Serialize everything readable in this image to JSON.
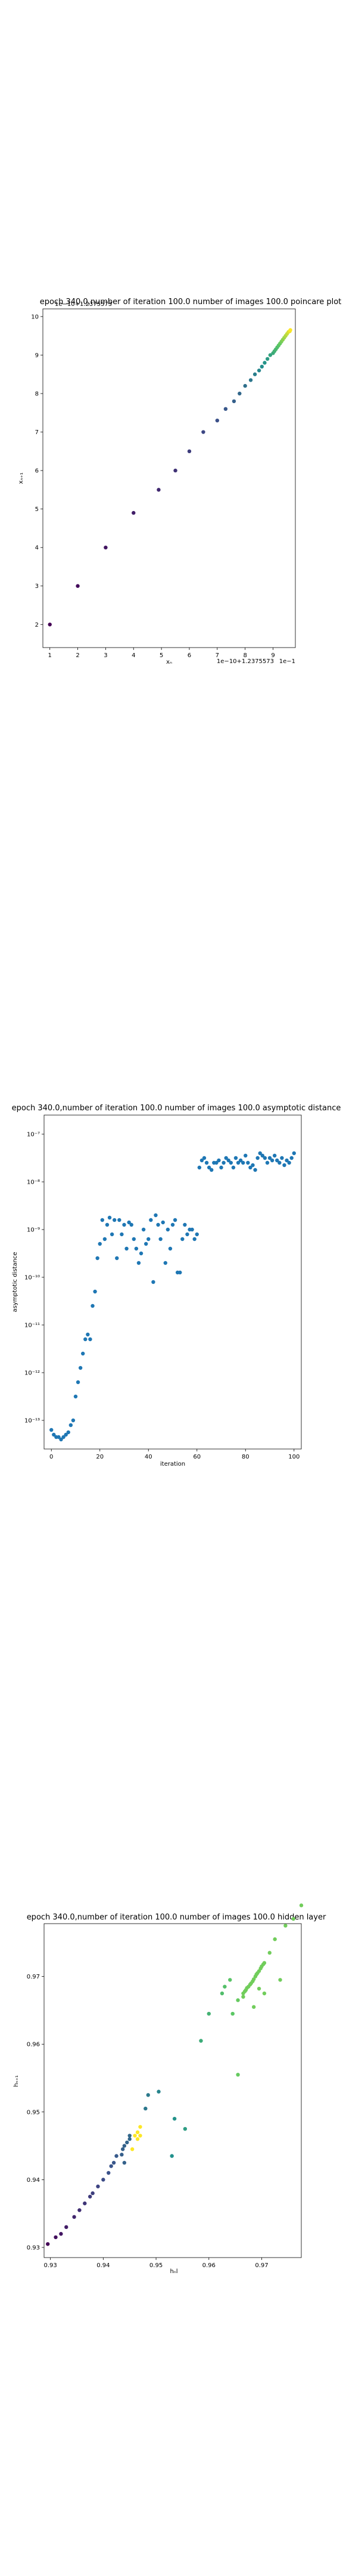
{
  "chart_data": [
    {
      "type": "scatter",
      "title": "epoch 340.0,number of iteration 100.0 number of images 100.0 poincare plot",
      "xlabel": "xₙ",
      "ylabel": "xₙ₊₁",
      "x_offset_text": "1e−10+1.2375573",
      "y_offset_text": "1e−10+1.2375573",
      "x_corner_text": "1e−1",
      "xlim": [
        0.75,
        9.8
      ],
      "ylim": [
        1.4,
        10.2
      ],
      "xticks": [
        "1",
        "2",
        "3",
        "4",
        "5",
        "6",
        "7",
        "8",
        "9"
      ],
      "yticks": [
        "2",
        "3",
        "4",
        "5",
        "6",
        "7",
        "8",
        "9",
        "10"
      ],
      "colormap": "viridis",
      "x": [
        1.0,
        2.0,
        3.0,
        4.0,
        4.9,
        5.5,
        6.0,
        6.5,
        7.0,
        7.3,
        7.6,
        7.8,
        8.0,
        8.2,
        8.35,
        8.5,
        8.6,
        8.7,
        8.8,
        8.9,
        9.0,
        9.05,
        9.1,
        9.15,
        9.2,
        9.25,
        9.3,
        9.35,
        9.4,
        9.45,
        9.5,
        9.55,
        9.6,
        9.62
      ],
      "y": [
        2.0,
        3.0,
        4.0,
        4.9,
        5.5,
        6.0,
        6.5,
        7.0,
        7.3,
        7.6,
        7.8,
        8.0,
        8.2,
        8.35,
        8.5,
        8.6,
        8.7,
        8.8,
        8.9,
        9.0,
        9.05,
        9.1,
        9.15,
        9.2,
        9.25,
        9.3,
        9.35,
        9.4,
        9.45,
        9.5,
        9.55,
        9.6,
        9.62,
        9.65
      ]
    },
    {
      "type": "scatter",
      "title": "epoch 340.0,number of iteration 100.0  number of images 100.0 asymptotic distance",
      "xlabel": "iteration",
      "ylabel": "asymptotic distance",
      "yscale": "log",
      "xlim": [
        -3,
        103
      ],
      "ylim": [
        -13.6,
        -6.6
      ],
      "xticks": [
        "0",
        "20",
        "40",
        "60",
        "80",
        "100"
      ],
      "yticks": [
        "10⁻¹³",
        "10⁻¹²",
        "10⁻¹¹",
        "10⁻¹⁰",
        "10⁻⁹",
        "10⁻⁸",
        "10⁻⁷"
      ],
      "color": "#1f77b4",
      "x": [
        0,
        1,
        2,
        3,
        4,
        5,
        6,
        7,
        8,
        9,
        10,
        11,
        12,
        13,
        14,
        15,
        16,
        17,
        18,
        19,
        20,
        21,
        22,
        23,
        24,
        25,
        26,
        27,
        28,
        29,
        30,
        31,
        32,
        33,
        34,
        35,
        36,
        37,
        38,
        39,
        40,
        41,
        42,
        43,
        44,
        45,
        46,
        47,
        48,
        49,
        50,
        51,
        52,
        53,
        54,
        55,
        56,
        57,
        58,
        59,
        60,
        61,
        62,
        63,
        64,
        65,
        66,
        67,
        68,
        69,
        70,
        71,
        72,
        73,
        74,
        75,
        76,
        77,
        78,
        79,
        80,
        81,
        82,
        83,
        84,
        85,
        86,
        87,
        88,
        89,
        90,
        91,
        92,
        93,
        94,
        95,
        96,
        97,
        98,
        99,
        100
      ],
      "y": [
        -13.2,
        -13.3,
        -13.35,
        -13.35,
        -13.4,
        -13.35,
        -13.3,
        -13.25,
        -13.1,
        -13.0,
        -12.5,
        -12.2,
        -11.9,
        -11.6,
        -11.3,
        -11.2,
        -11.3,
        -10.6,
        -10.3,
        -9.6,
        -9.3,
        -8.8,
        -9.2,
        -8.9,
        -8.75,
        -9.1,
        -8.8,
        -9.6,
        -8.8,
        -9.1,
        -8.9,
        -9.4,
        -8.85,
        -8.9,
        -9.2,
        -9.4,
        -9.7,
        -9.5,
        -9.0,
        -9.3,
        -9.2,
        -8.8,
        -10.1,
        -8.7,
        -8.9,
        -9.2,
        -8.85,
        -9.7,
        -9.0,
        -9.4,
        -8.9,
        -8.8,
        -9.9,
        -9.9,
        -9.2,
        -8.9,
        -9.1,
        -9.0,
        -9.0,
        -9.2,
        -9.1,
        -7.7,
        -7.55,
        -7.5,
        -7.6,
        -7.7,
        -7.75,
        -7.6,
        -7.6,
        -7.55,
        -7.7,
        -7.6,
        -7.5,
        -7.55,
        -7.6,
        -7.7,
        -7.5,
        -7.6,
        -7.55,
        -7.6,
        -7.45,
        -7.6,
        -7.7,
        -7.65,
        -7.75,
        -7.5,
        -7.4,
        -7.45,
        -7.5,
        -7.6,
        -7.5,
        -7.55,
        -7.45,
        -7.55,
        -7.6,
        -7.5,
        -7.65,
        -7.55,
        -7.6,
        -7.5,
        -7.4
      ]
    },
    {
      "type": "scatter",
      "title": "epoch 340.0,number of iteration 100.0  number of images 100.0 hidden layer",
      "xlabel": "hₙl",
      "ylabel": "hₙ₊₁",
      "xlim": [
        0.9288,
        0.9775
      ],
      "ylim": [
        0.9285,
        0.9778
      ],
      "xticks": [
        "0.93",
        "0.94",
        "0.95",
        "0.96",
        "0.97"
      ],
      "yticks": [
        "0.93",
        "0.94",
        "0.95",
        "0.96",
        "0.97"
      ],
      "colormap": "viridis",
      "x": [
        0.9295,
        0.931,
        0.932,
        0.933,
        0.9345,
        0.9355,
        0.9365,
        0.9375,
        0.938,
        0.939,
        0.94,
        0.941,
        0.9415,
        0.942,
        0.9425,
        0.9435,
        0.9437,
        0.944,
        0.944,
        0.9445,
        0.945,
        0.945,
        0.9455,
        0.946,
        0.9465,
        0.9465,
        0.947,
        0.947,
        0.948,
        0.9485,
        0.9505,
        0.953,
        0.9535,
        0.9555,
        0.9585,
        0.96,
        0.9625,
        0.963,
        0.964,
        0.9655,
        0.9665,
        0.9665,
        0.9668,
        0.967,
        0.9672,
        0.9675,
        0.9678,
        0.968,
        0.9683,
        0.9685,
        0.9688,
        0.969,
        0.9692,
        0.9695,
        0.9698,
        0.97,
        0.9703,
        0.9705,
        0.9695,
        0.9715,
        0.9725,
        0.9745,
        0.976,
        0.9775,
        0.9735,
        0.9705,
        0.9685,
        0.9655,
        0.9645
      ],
      "y": [
        0.9305,
        0.9315,
        0.932,
        0.933,
        0.9345,
        0.9355,
        0.9365,
        0.9375,
        0.938,
        0.939,
        0.94,
        0.941,
        0.942,
        0.9425,
        0.9435,
        0.9437,
        0.9445,
        0.945,
        0.9425,
        0.9455,
        0.946,
        0.9465,
        0.9445,
        0.9465,
        0.947,
        0.946,
        0.9465,
        0.9478,
        0.9505,
        0.9525,
        0.953,
        0.9435,
        0.949,
        0.9475,
        0.9605,
        0.9645,
        0.9675,
        0.9685,
        0.9695,
        0.9665,
        0.967,
        0.9675,
        0.9678,
        0.968,
        0.9683,
        0.9685,
        0.9688,
        0.969,
        0.9693,
        0.9696,
        0.97,
        0.9703,
        0.9705,
        0.9708,
        0.9712,
        0.9715,
        0.9718,
        0.972,
        0.9682,
        0.9735,
        0.9755,
        0.9775,
        0.9785,
        0.9805,
        0.9695,
        0.9675,
        0.9655,
        0.9555,
        0.9645
      ]
    }
  ]
}
